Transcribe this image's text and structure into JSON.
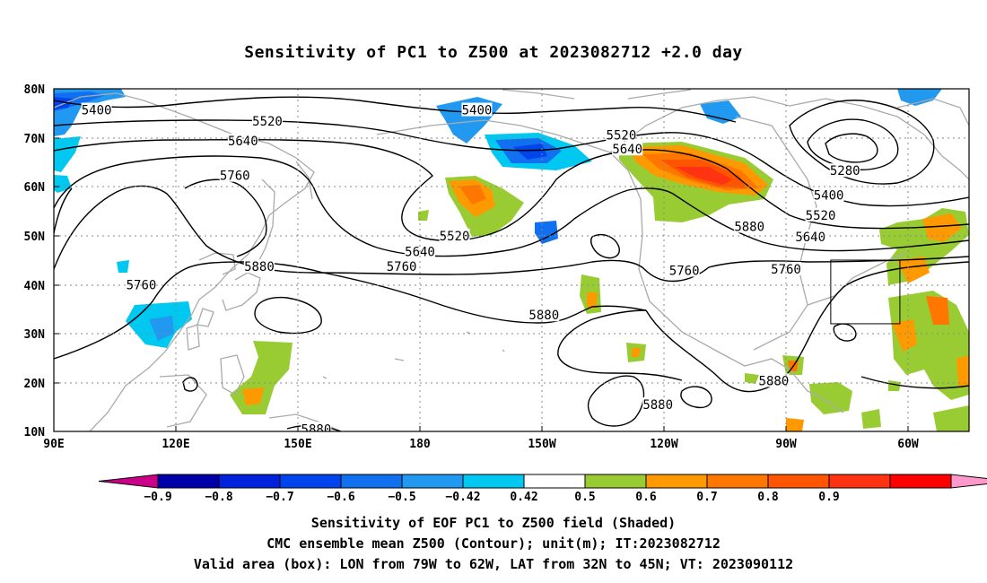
{
  "title": "Sensitivity of PC1 to Z500 at 2023082712 +2.0 day",
  "lat_labels": [
    "80N",
    "70N",
    "60N",
    "50N",
    "40N",
    "30N",
    "20N",
    "10N"
  ],
  "lon_labels": [
    "90E",
    "120E",
    "150E",
    "180",
    "150W",
    "120W",
    "90W",
    "60W"
  ],
  "map": {
    "lon_range": [
      90,
      315
    ],
    "lat_range": [
      10,
      80
    ],
    "valid_box": {
      "lon_w": -79,
      "lon_e": -62,
      "lat_s": 32,
      "lat_n": 45
    },
    "contour_labels": [
      {
        "text": "5400",
        "lon": 100.5,
        "lat": 75.5
      },
      {
        "text": "5400",
        "lon": 194.0,
        "lat": 75.5
      },
      {
        "text": "5520",
        "lon": 142.5,
        "lat": 73.2
      },
      {
        "text": "5520",
        "lon": 229.5,
        "lat": 70.4
      },
      {
        "text": "5640",
        "lon": 136.5,
        "lat": 69.2
      },
      {
        "text": "5640",
        "lon": 231.0,
        "lat": 67.5
      },
      {
        "text": "5760",
        "lon": 134.5,
        "lat": 62.1
      },
      {
        "text": "5280",
        "lon": 284.5,
        "lat": 63.1
      },
      {
        "text": "5400",
        "lon": 280.5,
        "lat": 58.1
      },
      {
        "text": "5520",
        "lon": 278.5,
        "lat": 54.0
      },
      {
        "text": "5520",
        "lon": 188.5,
        "lat": 49.8
      },
      {
        "text": "5640",
        "lon": 180.0,
        "lat": 46.6
      },
      {
        "text": "5640",
        "lon": 276.0,
        "lat": 49.6
      },
      {
        "text": "5760",
        "lon": 175.5,
        "lat": 43.5
      },
      {
        "text": "5760",
        "lon": 245.0,
        "lat": 42.7
      },
      {
        "text": "5760",
        "lon": 270.0,
        "lat": 43.0
      },
      {
        "text": "5880",
        "lon": 140.5,
        "lat": 43.5
      },
      {
        "text": "5880",
        "lon": 261.0,
        "lat": 51.7
      },
      {
        "text": "5880",
        "lon": 210.5,
        "lat": 33.6
      },
      {
        "text": "5880",
        "lon": 267.0,
        "lat": 20.2
      },
      {
        "text": "5880",
        "lon": 238.5,
        "lat": 15.3
      },
      {
        "text": "5880",
        "lon": 154.5,
        "lat": 10.3
      },
      {
        "text": "5760",
        "lon": 111.5,
        "lat": 39.8
      }
    ]
  },
  "colorbar": {
    "colors": [
      "#cc0088",
      "#0000aa",
      "#0022dd",
      "#0044ee",
      "#1170f0",
      "#2299f0",
      "#00c8f0",
      "#ffffff",
      "#99cc33",
      "#ff9900",
      "#ff7700",
      "#ff5500",
      "#ff3311",
      "#ff0000",
      "#ff99cc"
    ],
    "labels": [
      "−0.9",
      "−0.8",
      "−0.7",
      "−0.6",
      "−0.5",
      "−0.42",
      "0.42",
      "0.5",
      "0.6",
      "0.7",
      "0.8",
      "0.9"
    ]
  },
  "footer": {
    "line1": "Sensitivity of EOF PC1 to Z500 field (Shaded)",
    "line2": "CMC ensemble mean Z500 (Contour); unit(m); IT:2023082712",
    "line3": "Valid area (box): LON from 79W to 62W, LAT from 32N to 45N; VT: 2023090112"
  }
}
